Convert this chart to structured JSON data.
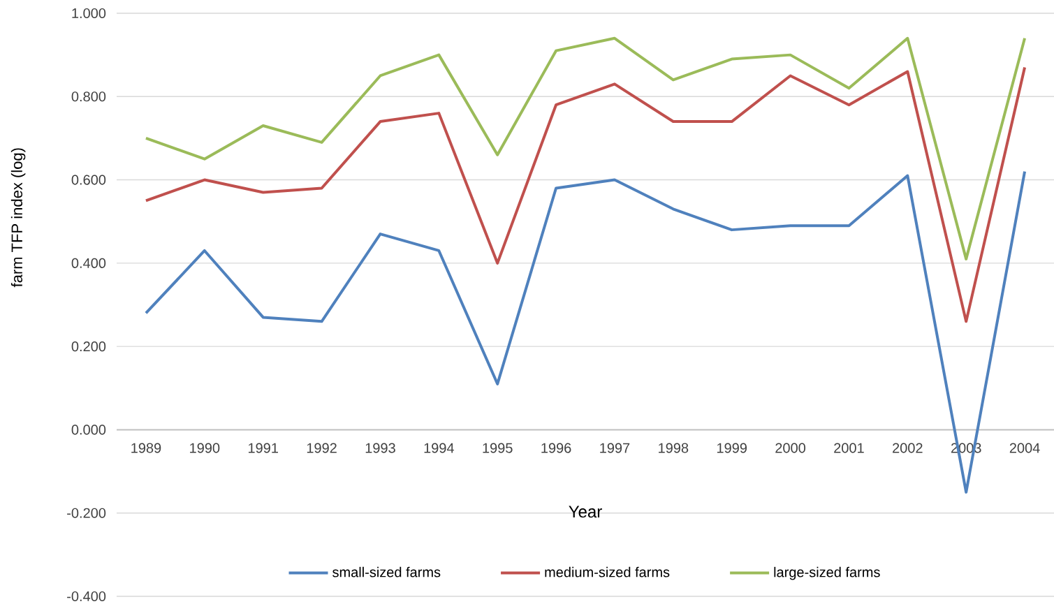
{
  "chart_data": {
    "type": "line",
    "xlabel": "Year",
    "ylabel": "farm TFP index (log)",
    "categories": [
      "1989",
      "1990",
      "1991",
      "1992",
      "1993",
      "1994",
      "1995",
      "1996",
      "1997",
      "1998",
      "1999",
      "2000",
      "2001",
      "2002",
      "2003",
      "2004"
    ],
    "series": [
      {
        "name": "small-sized farms",
        "color": "#4f81bd",
        "values": [
          0.28,
          0.43,
          0.27,
          0.26,
          0.47,
          0.43,
          0.11,
          0.58,
          0.6,
          0.53,
          0.48,
          0.49,
          0.49,
          0.61,
          -0.15,
          0.62
        ]
      },
      {
        "name": "medium-sized farms",
        "color": "#c0504d",
        "values": [
          0.55,
          0.6,
          0.57,
          0.58,
          0.74,
          0.76,
          0.4,
          0.78,
          0.83,
          0.74,
          0.74,
          0.85,
          0.78,
          0.86,
          0.26,
          0.87
        ]
      },
      {
        "name": "large-sized farms",
        "color": "#9bbb59",
        "values": [
          0.7,
          0.65,
          0.73,
          0.69,
          0.85,
          0.9,
          0.66,
          0.91,
          0.94,
          0.84,
          0.89,
          0.9,
          0.82,
          0.94,
          0.41,
          0.94
        ]
      }
    ],
    "ylim": [
      -0.4,
      1.0
    ],
    "yticks": [
      {
        "value": -0.4,
        "label": "-0.400"
      },
      {
        "value": -0.2,
        "label": "-0.200"
      },
      {
        "value": 0,
        "label": "0.000"
      },
      {
        "value": 0.2,
        "label": "0.200"
      },
      {
        "value": 0.4,
        "label": "0.400"
      },
      {
        "value": 0.6,
        "label": "0.600"
      },
      {
        "value": 0.8,
        "label": "0.800"
      },
      {
        "value": 1.0,
        "label": "1.000"
      }
    ],
    "grid": "y",
    "legend": "bottom",
    "line_style": "solid"
  }
}
